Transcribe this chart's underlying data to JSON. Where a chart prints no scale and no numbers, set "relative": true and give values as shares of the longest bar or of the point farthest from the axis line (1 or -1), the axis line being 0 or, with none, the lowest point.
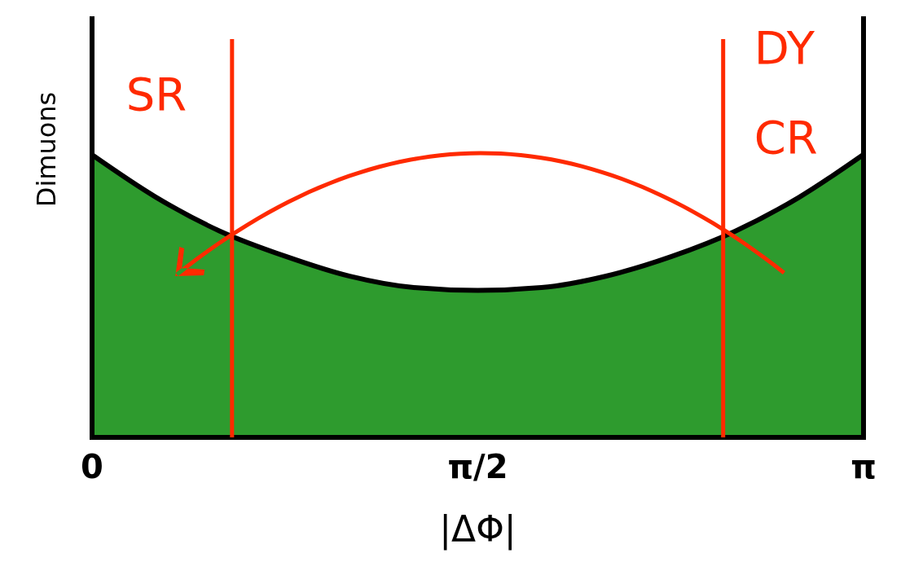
{
  "chart_data": {
    "type": "area",
    "relative": true,
    "xlabel": "|ΔΦ|",
    "ylabel": "Dimuons",
    "x": [
      0,
      0.26,
      0.52,
      0.79,
      1.05,
      1.31,
      1.57,
      1.83,
      2.09,
      2.36,
      2.62,
      2.88,
      3.14
    ],
    "series": [
      {
        "color": "#2e9b2e",
        "values": [
          1,
          0.85,
          0.73,
          0.64,
          0.57,
          0.53,
          0.52,
          0.53,
          0.57,
          0.64,
          0.73,
          0.85,
          1
        ]
      }
    ],
    "xlim": [
      0,
      3.1416
    ],
    "xticks": [
      0,
      {
        "value": 1.5708,
        "label": "π/2"
      },
      {
        "value": 3.1416,
        "label": "π"
      }
    ],
    "ref_lines": [
      {
        "axis": "x",
        "value": 0.57,
        "label": "SR",
        "color": "#ff2a00"
      },
      {
        "axis": "x",
        "value": 2.57,
        "label": "DY CR",
        "color": "#ff2a00"
      }
    ]
  }
}
